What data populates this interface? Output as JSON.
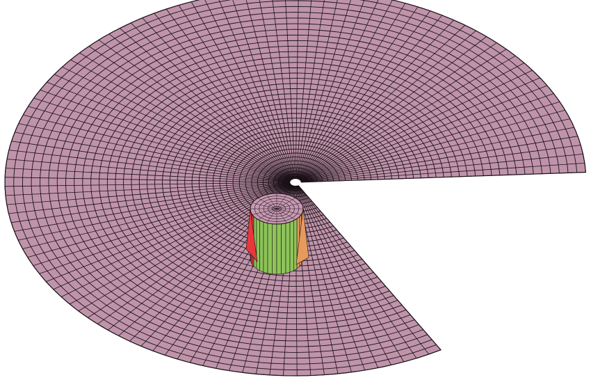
{
  "mesh": {
    "kind": "polar-annulus-with-wedge-cut",
    "rings": 40,
    "spokes": 110,
    "wedge_gap_start_deg": -3,
    "wedge_gap_end_deg": 60
  },
  "colors": {
    "background": "#ffffff",
    "surface": "#bf94aa",
    "grid_line": "#1a1016",
    "wall_green": "#8ec45a",
    "wall_red": "#e8383c",
    "wall_orange": "#e79a5c",
    "core_top": "#c79ab3"
  }
}
